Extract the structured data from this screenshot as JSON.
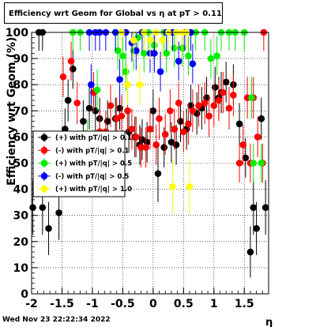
{
  "title": "Efficiency wrt Geom for Global vs  η at pT > 0.11",
  "timestamp": "Wed Nov 23 22:22:34 2022",
  "chart_data": {
    "type": "scatter",
    "xlabel": "η",
    "ylabel": "Efficiency wrt Geom (%)",
    "xlim": [
      -2.0,
      1.9
    ],
    "ylim": [
      0,
      100
    ],
    "x_ticks": [
      "-2",
      "-1.5",
      "-1",
      "-0.5",
      "0",
      "0.5",
      "1",
      "1.5"
    ],
    "y_ticks": [
      "0",
      "10",
      "20",
      "30",
      "40",
      "50",
      "60",
      "70",
      "80",
      "90",
      "100"
    ],
    "grid": true,
    "legend_position": "left-middle",
    "series": [
      {
        "name": "(+) with pT/|q| > 0.1",
        "color": "#000000",
        "points": [
          [
            -1.98,
            33
          ],
          [
            -1.82,
            33
          ],
          [
            -1.72,
            25
          ],
          [
            -1.55,
            31
          ],
          [
            -1.88,
            100
          ],
          [
            -1.82,
            100
          ],
          [
            -1.45,
            63
          ],
          [
            -1.4,
            74
          ],
          [
            -1.32,
            86
          ],
          [
            -1.15,
            66
          ],
          [
            -1.05,
            71
          ],
          [
            -0.95,
            70
          ],
          [
            -0.88,
            67
          ],
          [
            -0.75,
            66
          ],
          [
            -0.62,
            67
          ],
          [
            -0.55,
            71
          ],
          [
            -0.4,
            62
          ],
          [
            -0.3,
            60
          ],
          [
            -0.22,
            57
          ],
          [
            -0.18,
            59
          ],
          [
            -0.1,
            58
          ],
          [
            0.0,
            70
          ],
          [
            0.08,
            46
          ],
          [
            0.18,
            56
          ],
          [
            0.3,
            58
          ],
          [
            0.38,
            57
          ],
          [
            0.45,
            66
          ],
          [
            0.55,
            63
          ],
          [
            0.62,
            72
          ],
          [
            0.72,
            69
          ],
          [
            0.8,
            71
          ],
          [
            0.88,
            75
          ],
          [
            1.02,
            79
          ],
          [
            1.08,
            75
          ],
          [
            1.12,
            77
          ],
          [
            1.2,
            81
          ],
          [
            1.32,
            80
          ],
          [
            1.42,
            65
          ],
          [
            1.52,
            52
          ],
          [
            1.6,
            16
          ],
          [
            1.65,
            33
          ],
          [
            1.7,
            25
          ],
          [
            1.78,
            67
          ],
          [
            1.85,
            33
          ]
        ]
      },
      {
        "name": "(-) with pT/|q| > 0.1",
        "color": "#ff0000",
        "points": [
          [
            -1.48,
            83
          ],
          [
            -1.35,
            89
          ],
          [
            -1.25,
            73
          ],
          [
            -1.12,
            55
          ],
          [
            -0.98,
            77
          ],
          [
            -0.88,
            62
          ],
          [
            -0.78,
            62
          ],
          [
            -0.7,
            72
          ],
          [
            -0.6,
            67
          ],
          [
            -0.52,
            68
          ],
          [
            -0.42,
            70
          ],
          [
            -0.35,
            63
          ],
          [
            -0.28,
            60
          ],
          [
            -0.2,
            56
          ],
          [
            -0.12,
            56
          ],
          [
            -0.05,
            63
          ],
          [
            0.05,
            57
          ],
          [
            0.1,
            67
          ],
          [
            0.2,
            61
          ],
          [
            0.28,
            70
          ],
          [
            0.35,
            63
          ],
          [
            0.42,
            73
          ],
          [
            0.5,
            62
          ],
          [
            0.58,
            65
          ],
          [
            0.65,
            70
          ],
          [
            0.75,
            72
          ],
          [
            0.85,
            73
          ],
          [
            0.92,
            68
          ],
          [
            1.0,
            72
          ],
          [
            1.08,
            74
          ],
          [
            1.15,
            77
          ],
          [
            1.25,
            71
          ],
          [
            1.32,
            76
          ],
          [
            1.42,
            50
          ],
          [
            1.48,
            57
          ],
          [
            1.55,
            75
          ],
          [
            1.6,
            50
          ],
          [
            1.65,
            75
          ],
          [
            1.72,
            60
          ],
          [
            1.8,
            50
          ],
          [
            1.82,
            100
          ]
        ]
      },
      {
        "name": "(+) with pT/|q| > 0.5",
        "color": "#00ee00",
        "points": [
          [
            -1.32,
            100
          ],
          [
            -1.2,
            100
          ],
          [
            -1.08,
            59
          ],
          [
            -0.92,
            78
          ],
          [
            -0.62,
            100
          ],
          [
            -0.58,
            93
          ],
          [
            -0.5,
            91
          ],
          [
            -0.45,
            85
          ],
          [
            -0.32,
            93
          ],
          [
            -0.25,
            98
          ],
          [
            -0.15,
            92
          ],
          [
            -0.08,
            100
          ],
          [
            0.02,
            95
          ],
          [
            0.18,
            100
          ],
          [
            0.22,
            92
          ],
          [
            0.35,
            94
          ],
          [
            0.48,
            94
          ],
          [
            0.58,
            91
          ],
          [
            0.7,
            100
          ],
          [
            0.85,
            100
          ],
          [
            0.95,
            90
          ],
          [
            1.05,
            91
          ],
          [
            1.12,
            100
          ],
          [
            1.25,
            100
          ],
          [
            1.35,
            100
          ],
          [
            1.5,
            100
          ],
          [
            1.62,
            75
          ],
          [
            1.65,
            50
          ],
          [
            1.78,
            50
          ]
        ]
      },
      {
        "name": "(-) with pT/|q| > 0.5",
        "color": "#0000ff",
        "points": [
          [
            -1.05,
            100
          ],
          [
            -1.02,
            80
          ],
          [
            -0.95,
            100
          ],
          [
            -0.88,
            100
          ],
          [
            -0.78,
            100
          ],
          [
            -0.62,
            100
          ],
          [
            -0.55,
            82
          ],
          [
            -0.45,
            100
          ],
          [
            -0.35,
            96
          ],
          [
            -0.28,
            93
          ],
          [
            -0.18,
            100
          ],
          [
            -0.05,
            92
          ],
          [
            0.02,
            92
          ],
          [
            0.12,
            85
          ],
          [
            0.22,
            100
          ],
          [
            0.32,
            100
          ],
          [
            0.42,
            89
          ],
          [
            0.52,
            100
          ],
          [
            0.65,
            88
          ],
          [
            0.62,
            100
          ]
        ]
      },
      {
        "name": "(+) with pT/|q| > 1.0",
        "color": "#ffff00",
        "points": [
          [
            -0.52,
            100
          ],
          [
            -0.42,
            80
          ],
          [
            -0.32,
            97
          ],
          [
            -0.22,
            80
          ],
          [
            -0.15,
            100
          ],
          [
            -0.05,
            97
          ],
          [
            0.05,
            100
          ],
          [
            0.15,
            97
          ],
          [
            0.25,
            100
          ],
          [
            0.32,
            41
          ],
          [
            0.38,
            100
          ],
          [
            0.48,
            100
          ],
          [
            0.55,
            100
          ],
          [
            0.6,
            41
          ]
        ]
      }
    ]
  }
}
